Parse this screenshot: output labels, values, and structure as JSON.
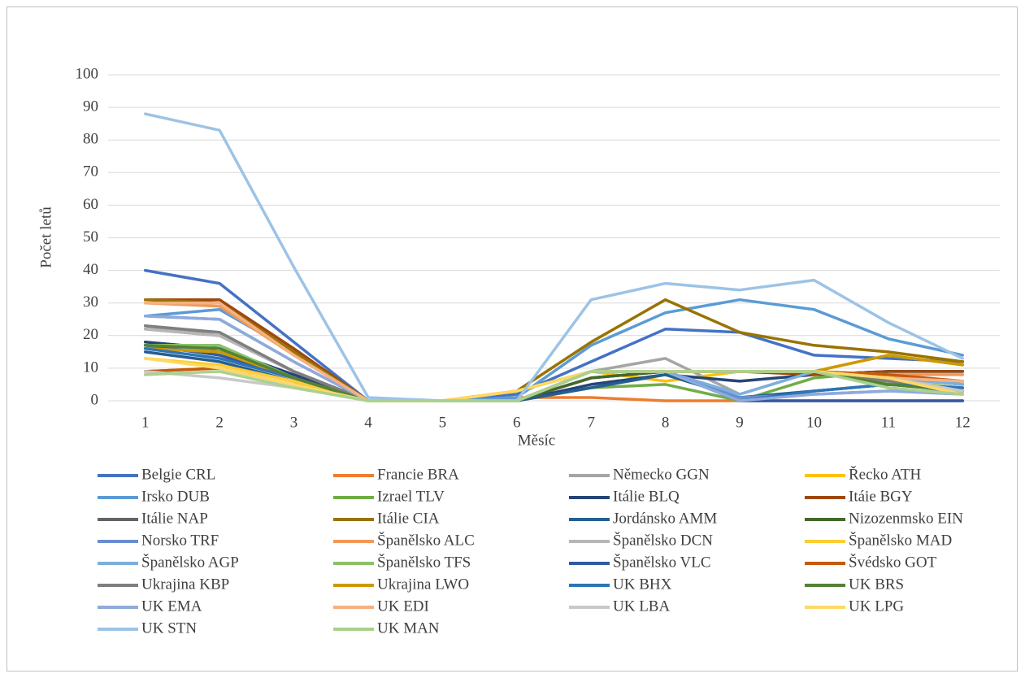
{
  "chart_data": {
    "type": "line",
    "x_label": "Měsíc",
    "y_label": "Počet letů",
    "categories": [
      "1",
      "2",
      "3",
      "4",
      "5",
      "6",
      "7",
      "8",
      "9",
      "10",
      "11",
      "12"
    ],
    "ylim": [
      0,
      100
    ],
    "yticks": [
      0,
      10,
      20,
      30,
      40,
      50,
      60,
      70,
      80,
      90,
      100
    ],
    "grid": true,
    "legend": "bottom",
    "series": [
      {
        "name": "Belgie CRL",
        "color": "#4472C4",
        "values": [
          40,
          36,
          18,
          0,
          0,
          2,
          12,
          22,
          21,
          14,
          13,
          12
        ]
      },
      {
        "name": "Francie BRA",
        "color": "#ED7D31",
        "values": [
          9,
          10,
          5,
          0,
          0,
          1,
          1,
          0,
          0,
          0,
          0,
          0
        ]
      },
      {
        "name": "Německo GGN",
        "color": "#A5A5A5",
        "values": [
          23,
          20,
          9,
          0,
          0,
          0,
          9,
          13,
          2,
          9,
          6,
          3
        ]
      },
      {
        "name": "Řecko ATH",
        "color": "#FFC000",
        "values": [
          17,
          16,
          7,
          0,
          0,
          3,
          9,
          6,
          9,
          9,
          14,
          11
        ]
      },
      {
        "name": "Irsko DUB",
        "color": "#5B9BD5",
        "values": [
          26,
          28,
          15,
          0,
          0,
          1,
          17,
          27,
          31,
          28,
          19,
          14
        ]
      },
      {
        "name": "Izrael TLV",
        "color": "#70AD47",
        "values": [
          17,
          16,
          7,
          0,
          0,
          0,
          4,
          5,
          0,
          7,
          9,
          9
        ]
      },
      {
        "name": "Itálie BLQ",
        "color": "#264478",
        "values": [
          18,
          16,
          8,
          0,
          0,
          0,
          5,
          8,
          6,
          8,
          9,
          9
        ]
      },
      {
        "name": "Itáie BGY",
        "color": "#9E480E",
        "values": [
          31,
          31,
          16,
          0,
          0,
          0,
          7,
          9,
          9,
          8,
          9,
          9
        ]
      },
      {
        "name": "Itálie NAP",
        "color": "#636363",
        "values": [
          22,
          20,
          9,
          0,
          0,
          0,
          7,
          9,
          9,
          9,
          7,
          6
        ]
      },
      {
        "name": "Itálie CIA",
        "color": "#997300",
        "values": [
          31,
          30,
          15,
          0,
          0,
          3,
          18,
          31,
          21,
          17,
          15,
          12
        ]
      },
      {
        "name": "Jordánsko AMM",
        "color": "#255E91",
        "values": [
          15,
          12,
          6,
          0,
          0,
          0,
          4,
          8,
          1,
          3,
          5,
          3
        ]
      },
      {
        "name": "Nizozenmsko EIN",
        "color": "#43682B",
        "values": [
          17,
          15,
          7,
          0,
          0,
          0,
          7,
          9,
          9,
          9,
          7,
          5
        ]
      },
      {
        "name": "Norsko TRF",
        "color": "#698ED0",
        "values": [
          26,
          25,
          12,
          0,
          0,
          0,
          9,
          9,
          1,
          2,
          3,
          3
        ]
      },
      {
        "name": "Španělsko ALC",
        "color": "#F1975A",
        "values": [
          30,
          29,
          14,
          0,
          0,
          0,
          9,
          9,
          9,
          9,
          8,
          8
        ]
      },
      {
        "name": "Španělsko DCN",
        "color": "#B7B7B7",
        "values": [
          22,
          20,
          9,
          0,
          0,
          0,
          9,
          9,
          9,
          9,
          8,
          3
        ]
      },
      {
        "name": "Španělsko MAD",
        "color": "#FFCD33",
        "values": [
          13,
          11,
          6,
          0,
          0,
          3,
          9,
          9,
          9,
          9,
          8,
          3
        ]
      },
      {
        "name": "Španělsko AGP",
        "color": "#7CAFDD",
        "values": [
          16,
          16,
          7,
          0,
          0,
          0,
          9,
          9,
          2,
          9,
          7,
          5
        ]
      },
      {
        "name": "Španělsko TFS",
        "color": "#8CC168",
        "values": [
          17,
          17,
          7,
          0,
          0,
          0,
          9,
          9,
          9,
          9,
          6,
          4
        ]
      },
      {
        "name": "Španělsko VLC",
        "color": "#335AA1",
        "values": [
          17,
          14,
          7,
          0,
          0,
          0,
          9,
          9,
          0,
          0,
          0,
          0
        ]
      },
      {
        "name": "Švédsko GOT",
        "color": "#C55A11",
        "values": [
          9,
          10,
          5,
          0,
          0,
          0,
          9,
          9,
          9,
          9,
          8,
          6
        ]
      },
      {
        "name": "Ukrajina KBP",
        "color": "#7F7F7F",
        "values": [
          23,
          21,
          9,
          0,
          0,
          0,
          9,
          9,
          9,
          9,
          6,
          3
        ]
      },
      {
        "name": "Ukrajina LWO",
        "color": "#CC9A00",
        "values": [
          16,
          15,
          7,
          0,
          0,
          3,
          9,
          9,
          9,
          9,
          14,
          11
        ]
      },
      {
        "name": "UK BHX",
        "color": "#2E75B6",
        "values": [
          16,
          13,
          7,
          0,
          0,
          0,
          9,
          9,
          0,
          3,
          5,
          4
        ]
      },
      {
        "name": "UK BRS",
        "color": "#548235",
        "values": [
          17,
          16,
          7,
          0,
          0,
          0,
          9,
          9,
          9,
          9,
          5,
          3
        ]
      },
      {
        "name": "UK EMA",
        "color": "#8FAADC",
        "values": [
          26,
          25,
          12,
          0,
          0,
          0,
          9,
          9,
          0,
          2,
          3,
          2
        ]
      },
      {
        "name": "UK EDI",
        "color": "#F4B183",
        "values": [
          30,
          30,
          14,
          0,
          0,
          0,
          9,
          9,
          9,
          9,
          7,
          6
        ]
      },
      {
        "name": "UK LBA",
        "color": "#C9C9C9",
        "values": [
          9,
          7,
          4,
          0,
          0,
          0,
          9,
          9,
          9,
          9,
          7,
          3
        ]
      },
      {
        "name": "UK LPG",
        "color": "#FFD966",
        "values": [
          13,
          10,
          5,
          0,
          0,
          3,
          9,
          9,
          9,
          9,
          7,
          2
        ]
      },
      {
        "name": "UK STN",
        "color": "#9DC3E6",
        "values": [
          88,
          83,
          41,
          1,
          0,
          0,
          31,
          36,
          34,
          37,
          24,
          13
        ]
      },
      {
        "name": "UK MAN",
        "color": "#A9D18E",
        "values": [
          8,
          9,
          4,
          0,
          0,
          0,
          9,
          9,
          9,
          9,
          4,
          2
        ]
      }
    ]
  }
}
